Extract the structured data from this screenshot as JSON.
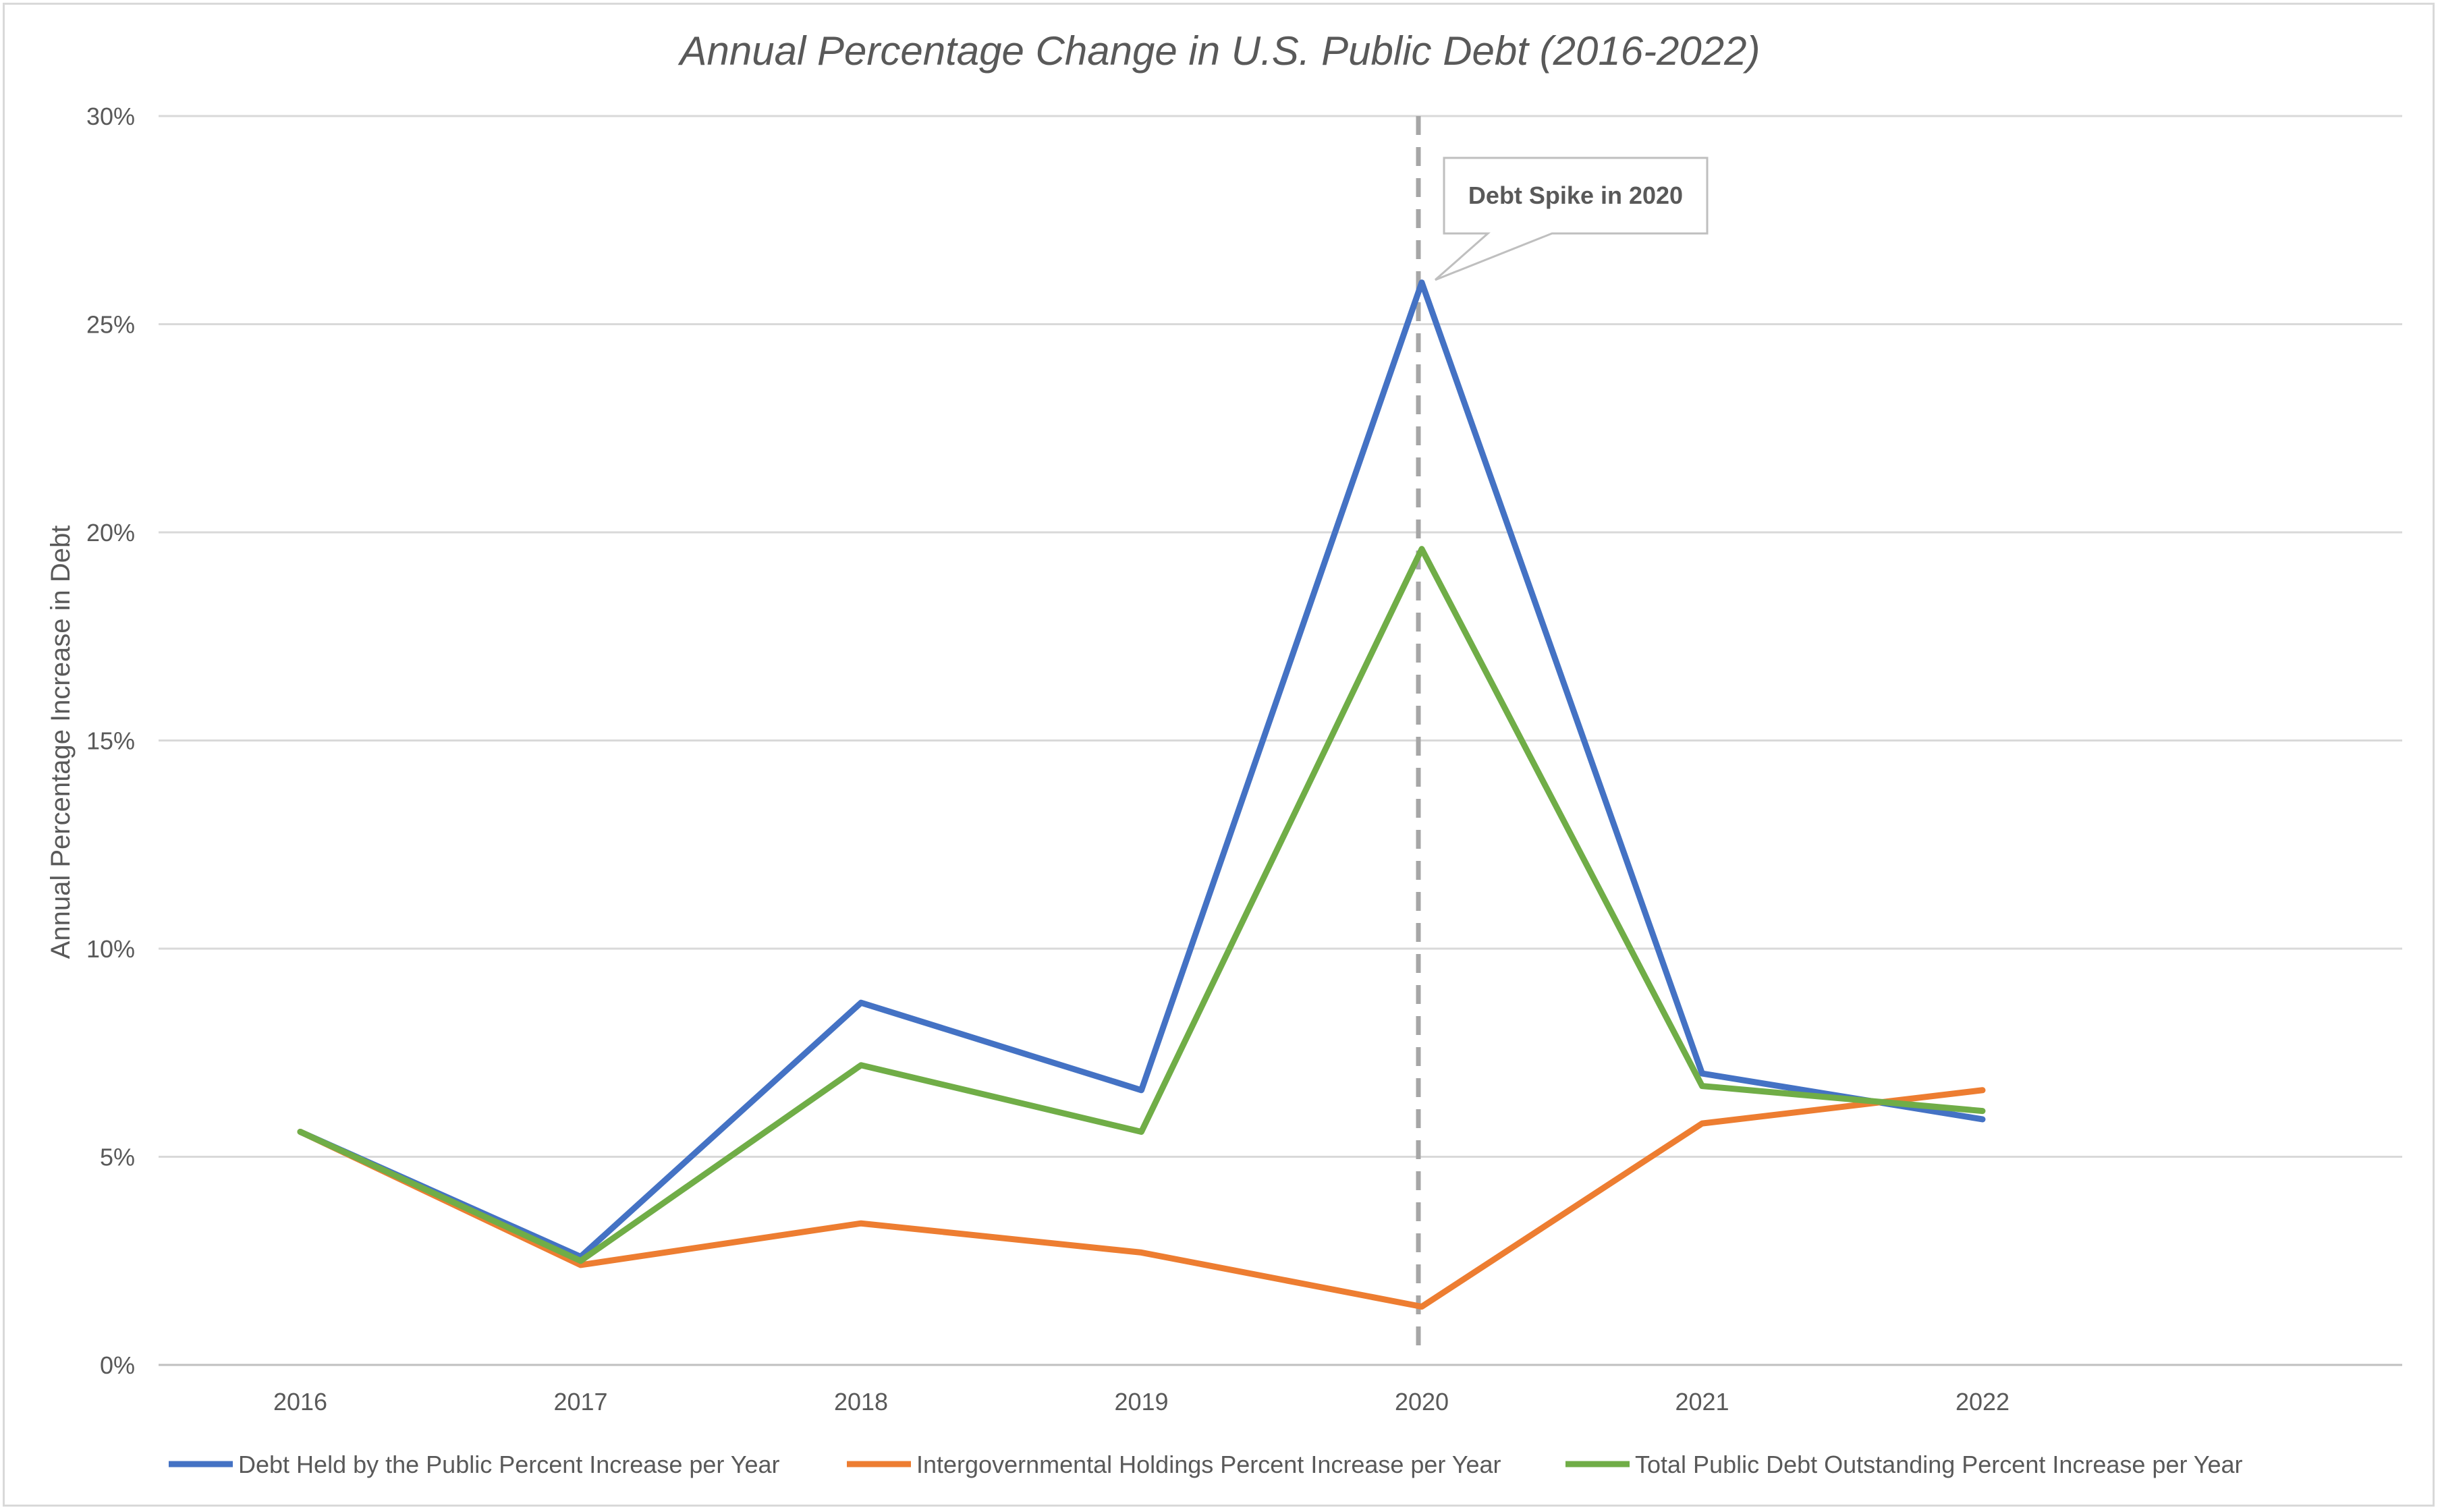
{
  "chart_data": {
    "type": "line",
    "title": "Annual Percentage Change in U.S. Public Debt (2016-2022)",
    "xlabel": "",
    "ylabel": "Annual Percentage Increase in Debt",
    "categories": [
      "2016",
      "2017",
      "2018",
      "2019",
      "2020",
      "2021",
      "2022"
    ],
    "ylim": [
      0,
      30
    ],
    "yticks": [
      0,
      5,
      10,
      15,
      20,
      25,
      30
    ],
    "ytick_labels": [
      "0%",
      "5%",
      "10%",
      "15%",
      "20%",
      "25%",
      "30%"
    ],
    "grid": true,
    "legend_position": "bottom",
    "series": [
      {
        "name": "Debt Held by the Public Percent Increase per Year",
        "color": "#4472C4",
        "values": [
          5.6,
          2.6,
          8.7,
          6.6,
          26.0,
          7.0,
          5.9
        ]
      },
      {
        "name": "Intergovernmental Holdings Percent Increase per Year",
        "color": "#ED7D31",
        "values": [
          5.6,
          2.4,
          3.4,
          2.7,
          1.4,
          5.8,
          6.6
        ]
      },
      {
        "name": "Total Public Debt Outstanding Percent Increase per Year",
        "color": "#70AD47",
        "values": [
          5.6,
          2.5,
          7.2,
          5.6,
          19.6,
          6.7,
          6.1
        ]
      }
    ],
    "annotation": {
      "text": "Debt Spike in 2020",
      "x": "2020",
      "y": 26.0,
      "reference_line": "dashed vertical line at 2020",
      "line_color": "#A6A6A6"
    }
  }
}
